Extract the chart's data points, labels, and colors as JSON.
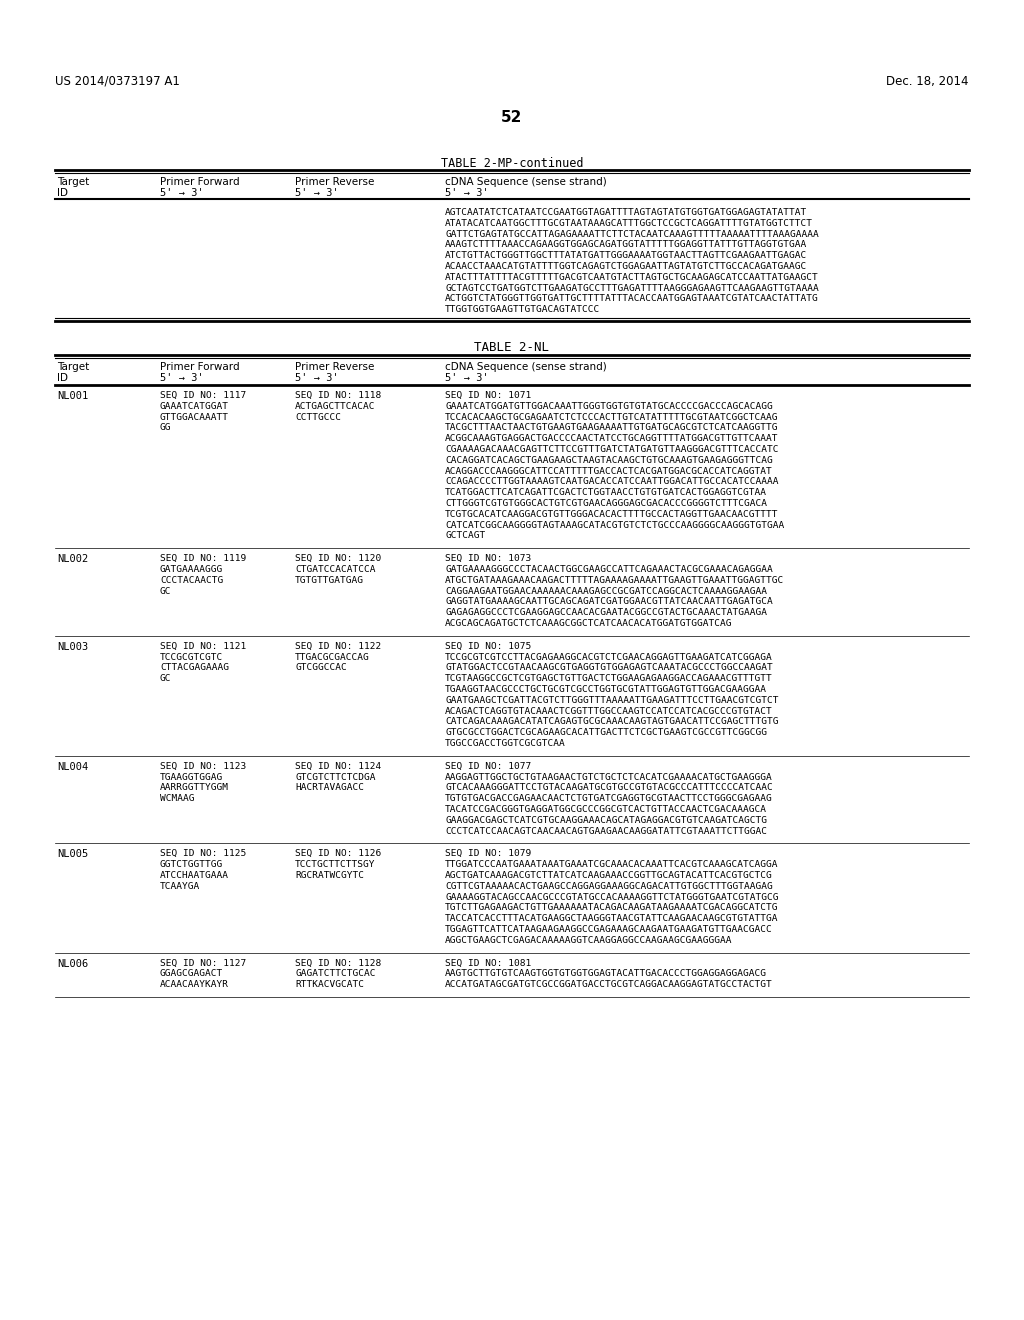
{
  "bg_color": "#ffffff",
  "header_left": "US 2014/0373197 A1",
  "header_right": "Dec. 18, 2014",
  "page_number": "52",
  "table1_title": "TABLE 2-MP-continued",
  "table2_title": "TABLE 2-NL",
  "table1_seq_lines": [
    "AGTCAATATCTCATAATCCGAATGGTAGATTTTAGTAGTATGTGGTGATGGAGAGTATATTAT",
    "ATATACATCAATGGCTTTGCGTAATAAAGCATTTGGCTCCGCTCAGGATTTTGTATGGTCTTCT",
    "GATTCTGAGTATGCCATTAGAGAAAATTCTTCTACAATCAAAGTTTTTAAAAATTTTAAAGAAAA",
    "AAAGTCTTTTAAACCAGAAGGTGGAGCAGATGGTATTTTTGGAGGTTATTTGTTAGGTGTGAA",
    "ATCTGTTACTGGGTTGGCTTTATATGATTGGGAAAATGGTAACTTAGTTCGAAGAATTGAGAC",
    "ACAACCTAAACATGTATTTTGGTCAGAGTCTGGAGAATTAGTATGTCTTGCCACAGATGAAGC",
    "ATACTTTATTTTACGTTTTTGACGTCAATGTACTTAGTGCTGCAAGAGCATCCAATTATGAAGCT",
    "GCTAGTCCTGATGGTCTTGAAGATGCCTTTGAGATTTTAAGGGAGAAGTTCAAGAAGTTGTAAAA",
    "ACTGGTCTATGGGTTGGTGATTGCTTTTATTTACACCAATGGAGTAAATCGTATCAACTATTATG",
    "TTGGTGGTGAAGTTGTGACAGTATCCC"
  ],
  "entries": [
    {
      "id": "NL001",
      "fwd": [
        "SEQ ID NO: 1117",
        "GAAATCATGGAT",
        "GTTGGACAAATT",
        "GG"
      ],
      "rev": [
        "SEQ ID NO: 1118",
        "ACTGAGCTTCACAC",
        "CCTTGCCC"
      ],
      "seq": [
        "SEQ ID NO: 1071",
        "GAAATCATGGATGTTGGACAAATTGGGTGGTGTGTATGCACCCCGACCCAGCACAGG",
        "TCCACACAAGCTGCGAGAATCTCTCCCACTTGTCATATTTTTGCGTAATCGGCTCAAG",
        "TACGCTTTAACTAACTGTGAAGTGAAGAAAATTGTGATGCAGCGTCTCATCAAGGTTG",
        "ACGGCAAAGTGAGGACTGACCCCAACTATCCTGCAGGTTTTATGGACGTTGTTCAAAT",
        "CGAAAAGACAAACGAGTTCTTCCGTTTGATCTATGATGTTAAGGGACGTTTCACCATC",
        "CACAGGATCACAGCTGAAGAAGCTAAGTACAAGCTGTGCAAAGTGAAGAGGGTTCAG",
        "ACAGGACCCAAGGGCATTCCATTTTTGACCACTCACGATGGACGCACCATCAGGTAT",
        "CCAGACCCCTTGGTAAAAGTCAATGACACCATCCAATTGGACATTGCCACATCCAAAA",
        "TCATGGACTTCATCAGATTCGACTCTGGTAACCTGTGTGATCACTGGAGGTCGTAA",
        "CTTGGGTCGTGTGGGCACTGTCGTGAACAGGGAGCGACACCCGGGGTCTTTCGACA",
        "TCGTGCACATCAAGGACGTGTTGGGACACACTTTTGCCACTAGGTTGAACAACGTTTT",
        "CATCATCGGCAAGGGGTAGTAAAGCATACGTGTCTCTGCCCAAGGGGCAAGGGTGTGAA",
        "GCTCAGT"
      ]
    },
    {
      "id": "NL002",
      "fwd": [
        "SEQ ID NO: 1119",
        "GATGAAAAGGG",
        "CCCTACAACTG",
        "GC"
      ],
      "rev": [
        "SEQ ID NO: 1120",
        "CTGATCCACATCCA",
        "TGTGTTGATGAG"
      ],
      "seq": [
        "SEQ ID NO: 1073",
        "GATGAAAAGGGCCCTACAACTGGCGAAGCCATTCAGAAACTACGCGAAACAGAGGAA",
        "ATGCTGATAAAGAAACAAGACTTTTTAGAAAAGAAAATTGAAGTTGAAATTGGAGTTGC",
        "CAGGAAGAATGGAACAAAAAACAAAGAGCCGCGATCCAGGCACTCAAAAGGAAGAA",
        "GAGGTATGAAAAGCAATTGCAGCAGATCGATGGAACGTTATCAACAATTGAGATGCA",
        "GAGAGAGGCCCTCGAAGGAGCCAACACGAATACGGCCGTACTGCAAACTATGAAGA",
        "ACGCAGCAGATGCTCTCAAAGCGGCTCATCAACACATGGATGTGGATCAG"
      ]
    },
    {
      "id": "NL003",
      "fwd": [
        "SEQ ID NO: 1121",
        "TCCGCGTCGTC",
        "CTTACGAGAAAG",
        "GC"
      ],
      "rev": [
        "SEQ ID NO: 1122",
        "TTGACGCGACCAG",
        "GTCGGCCAC"
      ],
      "seq": [
        "SEQ ID NO: 1075",
        "TCCGCGTCGTCCTTACGAGAAGGCACGTCTCGAACAGGAGTTGAAGATCATCGGAGA",
        "GTATGGACTCCGTAACAAGCGTGAGGTGTGGAGAGTCAAATACGCCCTGGCCAAGAT",
        "TCGTAAGGCCGCTCGTGAGCTGTTGACTCTGGAAGAGAAGGACCAGAAACGTTTGTT",
        "TGAAGGTAACGCCCTGCTGCGTCGCCTGGTGCGTATTGGAGTGTTGGACGAAGGAA",
        "GAATGAAGCTCGATTACGTCTTGGGTTTAAAAATTGAAGATTTCCTTGAACGTCGTCT",
        "ACAGACTCAGGTGTACAAACTCGGTTTGGCCAAGTCCATCCATCACGCCCGTGTACT",
        "CATCAGACAAAGACATATCAGAGTGCGCAAACAAGTAGTGAACATTCCGAGCTTTGTG",
        "GTGCGCCTGGACTCGCAGAAGCACATTGACTTCTCGCTGAAGTCGCCGTTCGGCGG",
        "TGGCCGACCTGGTCGCGTCAA"
      ]
    },
    {
      "id": "NL004",
      "fwd": [
        "SEQ ID NO: 1123",
        "TGAAGGTGGAG",
        "AARRGGTTYGGM",
        "WCMAAG"
      ],
      "rev": [
        "SEQ ID NO: 1124",
        "GTCGTCTTCTCDGA",
        "HACRTAVAGACC"
      ],
      "seq": [
        "SEQ ID NO: 1077",
        "AAGGAGTTGGCTGCTGTAAGAACTGTCTGCTCTCACATCGAAAACATGCTGAAGGGA",
        "GTCACAAAGGGATTCCTGTACAAGATGCGTGCCGTGTACGCCCATTTCCCCATCAAC",
        "TGTGTGACGACCGAGAACAACTCTGTGATCGAGGTGCGTAACTTCCTGGGCGAGAAG",
        "TACATCCGACGGGTGAGGATGGCGCCCGGCGTCACTGTTACCAACTCGACAAAGCA",
        "GAAGGACGAGCTCATCGTGCAAGGAAACAGCATAGAGGACGTGTCAAGATCAGCTG",
        "CCCTCATCCAACAGTCAACAACAGTGAAGAACAAGGATATTCGTAAATTCTTGGAC"
      ]
    },
    {
      "id": "NL005",
      "fwd": [
        "SEQ ID NO: 1125",
        "GGTCTGGTTGG",
        "ATCCHAATGAAA",
        "TCAAYGA"
      ],
      "rev": [
        "SEQ ID NO: 1126",
        "TCCTGCTTCTTSGY",
        "RGCRATWCGYTC"
      ],
      "seq": [
        "SEQ ID NO: 1079",
        "TTGGATCCCAATGAAATAAATGAAATCGCAAACACAAATTCACGTCAAAGCATCAGGA",
        "AGCTGATCAAAGACGTCTTATCATCAAGAAACCGGTTGCAGTACATTCACGTGCTCG",
        "CGTTCGTAAAAACACTGAAGCCAGGAGGAAAGGCAGACATTGTGGCTTTGGTAAGAG",
        "GAAAAGGTACAGCCAACGCCCGTATGCCACAAAAGGTTCTATGGGTGAATCGTATGCG",
        "TGTCTTGAGAAGACTGTTGAAAAAATACAGACAAGATAAGAAAATCGACAGGCATCTG",
        "TACCATCACCTTTACATGAAGGCTAAGGGTAACGTATTCAAGAACAAGCGTGTATTGA",
        "TGGAGTTCATTCATAAGAAGAAGGCCGAGAAAGCAAGAATGAAGATGTTGAACGACC",
        "AGGCTGAAGCTCGAGACAAAAAGGTCAAGGAGGCCAAGAAGCGAAGGGAA"
      ]
    },
    {
      "id": "NL006",
      "fwd": [
        "SEQ ID NO: 1127",
        "GGAGCGAGACT",
        "ACAACAAYKAYR"
      ],
      "rev": [
        "SEQ ID NO: 1128",
        "GAGATCTTCTGCAC",
        "RTTKACVGCATC"
      ],
      "seq": [
        "SEQ ID NO: 1081",
        "AAGTGCTTGTGTCAAGTGGTGTGGTGGAGTACATTGACACCCTGGAGGAGGAGACG",
        "ACCATGATAGCGATGTCGCCGGATGACCTGCGTCAGGACAAGGAGTATGCCTACTGT"
      ]
    }
  ]
}
